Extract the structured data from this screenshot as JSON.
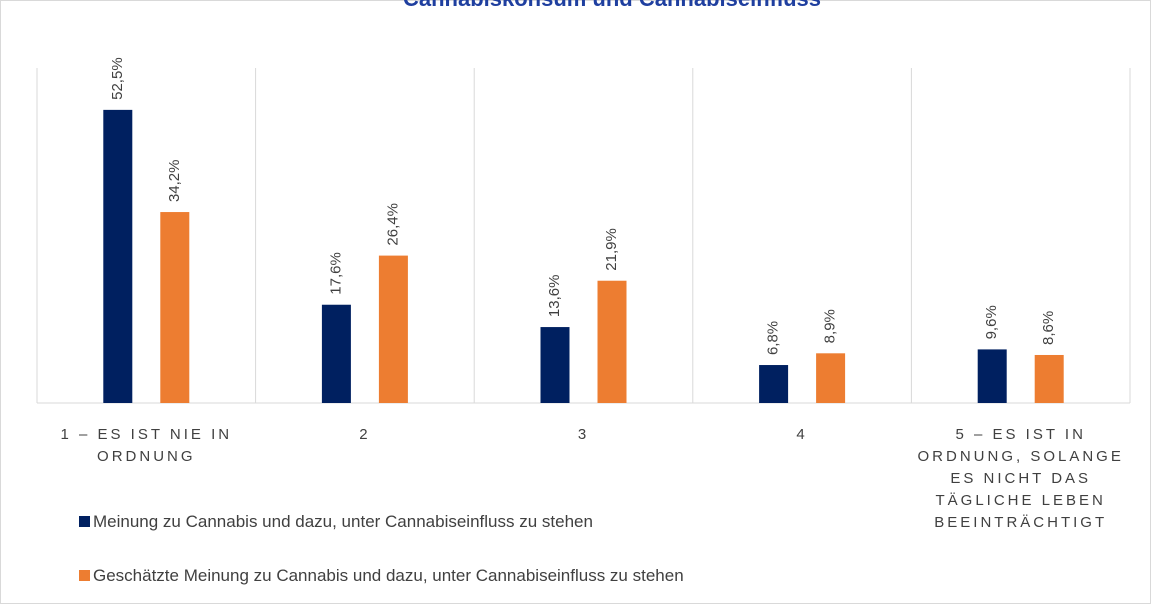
{
  "chart_data": {
    "type": "bar",
    "title": "Cannabiskonsum und Cannabiseinfluss",
    "categories": [
      "1 – ES IST NIE IN ORDNUNG",
      "2",
      "3",
      "4",
      "5 – ES IST IN ORDNUNG, SOLANGE ES NICHT DAS TÄGLICHE LEBEN BEEINTRÄCHTIGT"
    ],
    "series": [
      {
        "name": "Meinung zu Cannabis und dazu, unter Cannabiseinfluss zu stehen",
        "color": "#002060",
        "values": [
          52.5,
          17.6,
          13.6,
          6.8,
          9.6
        ],
        "value_labels": [
          "52,5%",
          "17,6%",
          "13,6%",
          "6,8%",
          "9,6%"
        ]
      },
      {
        "name": "Geschätzte Meinung zu Cannabis und dazu, unter Cannabiseinfluss zu stehen",
        "color": "#ED7D31",
        "values": [
          34.2,
          26.4,
          21.9,
          8.9,
          8.6
        ],
        "value_labels": [
          "34,2%",
          "26,4%",
          "21,9%",
          "8,9%",
          "8,6%"
        ]
      }
    ],
    "ylim": [
      0,
      60
    ]
  }
}
